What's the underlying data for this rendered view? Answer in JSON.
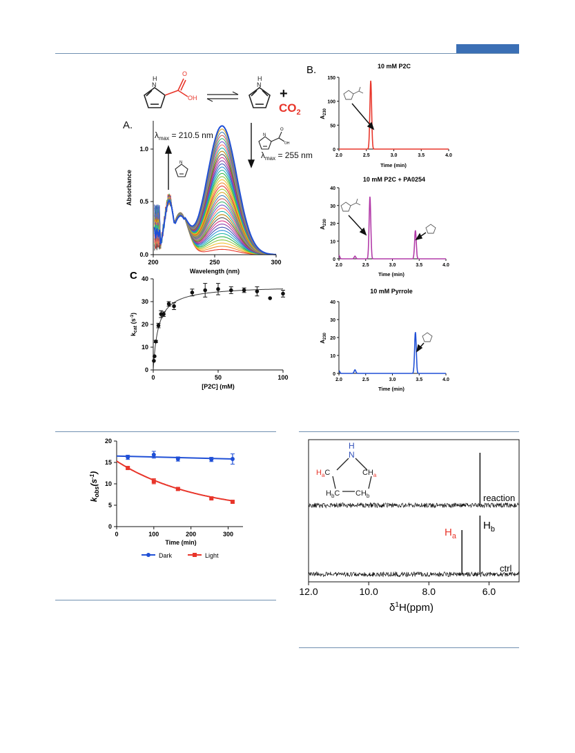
{
  "colors": {
    "rule": "#6f8fb0",
    "header_bar": "#3b6fb5",
    "red": "#e8352a",
    "magenta": "#b23aa8",
    "blue": "#1f4fd6",
    "dark": "#1f4fd6",
    "light": "#e8352a"
  },
  "scheme": {
    "nh_label": "N",
    "h_label": "H",
    "oh_label": "OH",
    "o_label": "O",
    "plus": "+",
    "co2": "CO",
    "co2_sub": "2"
  },
  "panel_a": {
    "label": "A.",
    "ann_left_prefix": "λ",
    "ann_left_sub": "max",
    "ann_left_value": " = 210.5 nm",
    "ann_right_prefix": "λ",
    "ann_right_sub": "max",
    "ann_right_value": " = 255 nm",
    "ylabel": "Absorbance",
    "xlabel": "Wavelength (nm)"
  },
  "panel_b": {
    "label": "B.",
    "titles": [
      "10 mM P2C",
      "10 mM P2C + PA0254",
      "10 mM Pyrrole"
    ],
    "ylabel_main": "A",
    "ylabel_sub": "230",
    "xlabel": "Time (min)"
  },
  "panel_c": {
    "label": "C",
    "ylabel_main": "k",
    "ylabel_sub": "cat",
    "ylabel_unit": " (s",
    "ylabel_sup": "-1",
    "ylabel_close": ")",
    "xlabel": "[P2C] (mM)"
  },
  "panel_d": {
    "ylabel_main": "k",
    "ylabel_sub": "obs",
    "ylabel_unit": "(s",
    "ylabel_sup": "-1",
    "ylabel_close": ")",
    "xlabel": "Time (min)",
    "legend": [
      "Dark",
      "Light"
    ]
  },
  "panel_e": {
    "n_label": "N",
    "h_label": "H",
    "ha_left": "H",
    "ha_left_sub": "a",
    "c_left": "C",
    "ch_right": "CH",
    "ha_right_sub": "a",
    "hb_left": "H",
    "hb_left_sub": "b",
    "c_hb_left": "C",
    "ch_hb_right": "CH",
    "hb_right_sub": "b",
    "trace_reaction": "reaction",
    "trace_ctrl": "ctrl",
    "peak_ha": "H",
    "peak_ha_sub": "a",
    "peak_hb": "H",
    "peak_hb_sub": "b",
    "xlabel_prefix": "δ",
    "xlabel_sup": "1",
    "xlabel_main": "H(ppm)"
  },
  "chart_data": [
    {
      "id": "uv_spectra",
      "type": "line",
      "xlabel": "Wavelength (nm)",
      "ylabel": "Absorbance",
      "xlim": [
        200,
        300
      ],
      "ylim": [
        0,
        1.3
      ],
      "xticks": [
        "200",
        "250",
        "300"
      ],
      "yticks": [
        "0.0",
        "0.5",
        "1.0"
      ],
      "n_curves": 40,
      "final_peak": {
        "x": 255,
        "y": 1.22
      },
      "initial_peak": {
        "x": 210.5,
        "y": 0.53
      },
      "isosbestic": {
        "x": 219,
        "y": 0.45
      }
    },
    {
      "id": "hplc_p2c",
      "type": "line",
      "title": "10 mM P2C",
      "xlim": [
        2.0,
        4.0
      ],
      "ylim": [
        0,
        150
      ],
      "xticks": [
        "2.0",
        "2.5",
        "3.0",
        "3.5",
        "4.0"
      ],
      "yticks": [
        "0",
        "50",
        "100",
        "150"
      ],
      "peaks": [
        {
          "x": 2.58,
          "y": 143
        }
      ]
    },
    {
      "id": "hplc_p2c_enzyme",
      "type": "line",
      "title": "10 mM P2C + PA0254",
      "xlim": [
        2.0,
        4.0
      ],
      "ylim": [
        0,
        40
      ],
      "xticks": [
        "2.0",
        "2.5",
        "3.0",
        "3.5",
        "4.0"
      ],
      "yticks": [
        "0",
        "10",
        "20",
        "30",
        "40"
      ],
      "peaks": [
        {
          "x": 2.0,
          "y": 2
        },
        {
          "x": 2.3,
          "y": 1.5
        },
        {
          "x": 2.58,
          "y": 35
        },
        {
          "x": 3.43,
          "y": 16
        }
      ]
    },
    {
      "id": "hplc_pyrrole",
      "type": "line",
      "title": "10 mM Pyrrole",
      "xlim": [
        2.0,
        4.0
      ],
      "ylim": [
        0,
        40
      ],
      "xticks": [
        "2.0",
        "2.5",
        "3.0",
        "3.5",
        "4.0"
      ],
      "yticks": [
        "0",
        "10",
        "20",
        "30",
        "40"
      ],
      "peaks": [
        {
          "x": 2.0,
          "y": 1.5
        },
        {
          "x": 2.3,
          "y": 2
        },
        {
          "x": 3.43,
          "y": 23
        }
      ]
    },
    {
      "id": "kcat_vs_p2c",
      "type": "scatter",
      "xlabel": "[P2C] (mM)",
      "ylabel": "kcat (s-1)",
      "xlim": [
        0,
        100
      ],
      "ylim": [
        0,
        40
      ],
      "xticks": [
        "0",
        "50",
        "100"
      ],
      "yticks": [
        "0",
        "10",
        "20",
        "30",
        "40"
      ],
      "points": [
        {
          "x": 0.5,
          "y": 4,
          "err": 0
        },
        {
          "x": 1,
          "y": 6,
          "err": 0
        },
        {
          "x": 2,
          "y": 12.5,
          "err": 0.5
        },
        {
          "x": 4,
          "y": 19.5,
          "err": 1
        },
        {
          "x": 6,
          "y": 24.5,
          "err": 1.5
        },
        {
          "x": 8,
          "y": 24.5,
          "err": 1
        },
        {
          "x": 12,
          "y": 29,
          "err": 1
        },
        {
          "x": 16,
          "y": 28,
          "err": 1.5
        },
        {
          "x": 30,
          "y": 34,
          "err": 1.5
        },
        {
          "x": 40,
          "y": 35,
          "err": 3
        },
        {
          "x": 50,
          "y": 35.5,
          "err": 2.5
        },
        {
          "x": 60,
          "y": 35,
          "err": 1.5
        },
        {
          "x": 70,
          "y": 35,
          "err": 1
        },
        {
          "x": 80,
          "y": 34.5,
          "err": 2
        },
        {
          "x": 90,
          "y": 31.5,
          "err": 0
        },
        {
          "x": 100,
          "y": 33.5,
          "err": 1.5
        }
      ],
      "fit": {
        "model": "michaelis-menten",
        "vmax": 37,
        "km": 4
      }
    },
    {
      "id": "kobs_vs_time",
      "type": "line",
      "xlabel": "Time (min)",
      "ylabel": "kobs (s-1)",
      "xlim": [
        0,
        340
      ],
      "ylim": [
        0,
        20
      ],
      "xticks": [
        "0",
        "100",
        "200",
        "300"
      ],
      "yticks": [
        "0",
        "5",
        "10",
        "15",
        "20"
      ],
      "legend": "bottom",
      "series": [
        {
          "name": "Dark",
          "x": [
            0,
            30,
            100,
            165,
            255,
            312
          ],
          "y": [
            16.5,
            16.2,
            16.8,
            15.8,
            15.7,
            15.8
          ],
          "err": [
            0,
            0.5,
            0.8,
            0.5,
            0.5,
            1.2
          ],
          "fit": {
            "y0": 16.5,
            "y1": 15.8
          }
        },
        {
          "name": "Light",
          "x": [
            0,
            30,
            100,
            165,
            255,
            312
          ],
          "y": [
            15.3,
            13.7,
            10.6,
            8.8,
            6.6,
            5.8
          ],
          "err": [
            0,
            0.3,
            0.6,
            0.3,
            0.2,
            0.2
          ],
          "fit": {
            "a": 12.3,
            "k": 0.0045,
            "c": 3
          }
        }
      ]
    },
    {
      "id": "nmr",
      "type": "line",
      "xlabel": "δ1H(ppm)",
      "xlim": [
        12.0,
        5.0
      ],
      "xticks": [
        "12.0",
        "10.0",
        "8.0",
        "6.0"
      ],
      "series": [
        {
          "name": "reaction",
          "peaks": [
            {
              "x": 6.3,
              "height": "tall"
            }
          ]
        },
        {
          "name": "ctrl",
          "peaks": [
            {
              "x": 6.9,
              "height": "Ha"
            },
            {
              "x": 6.3,
              "height": "Hb"
            }
          ]
        }
      ]
    }
  ]
}
